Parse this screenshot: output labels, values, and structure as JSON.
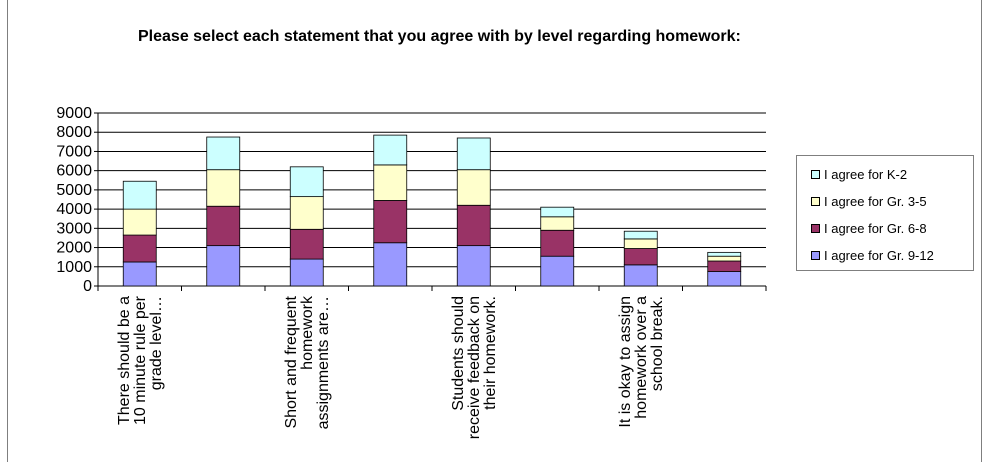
{
  "chart_data": {
    "type": "bar",
    "stacked": true,
    "title": "Please select each statement that you agree with by level regarding homework:",
    "categories": [
      "There should be a 10 minute rule per grade level…",
      "",
      "Short and frequent homework assignments are…",
      "",
      "Students should receive feedback on their homework.",
      "",
      "It is okay to assign homework over a school break.",
      ""
    ],
    "category_label_lines": [
      [
        "There should be a",
        "10 minute rule per",
        "grade level…"
      ],
      [],
      [
        "Short and frequent",
        "homework",
        "assignments are…"
      ],
      [],
      [
        "Students should",
        "receive feedback on",
        "their homework."
      ],
      [],
      [
        "It is okay to assign",
        "homework over a",
        "school break."
      ],
      []
    ],
    "series": [
      {
        "name": "I agree for Gr. 9-12",
        "color": "#9999ff",
        "values": [
          1250,
          2100,
          1400,
          2250,
          2100,
          1550,
          1100,
          750
        ]
      },
      {
        "name": "I agree for Gr. 6-8",
        "color": "#993366",
        "values": [
          1400,
          2050,
          1550,
          2200,
          2100,
          1350,
          850,
          550
        ]
      },
      {
        "name": "I agree for Gr. 3-5",
        "color": "#ffffcc",
        "values": [
          1350,
          1900,
          1700,
          1850,
          1850,
          700,
          500,
          250
        ]
      },
      {
        "name": "I agree for K-2",
        "color": "#ccffff",
        "values": [
          1450,
          1700,
          1550,
          1550,
          1650,
          500,
          400,
          200
        ]
      }
    ],
    "legend_order": [
      "I agree for K-2",
      "I agree for Gr. 3-5",
      "I agree for Gr. 6-8",
      "I agree for Gr. 9-12"
    ],
    "yticks": [
      0,
      1000,
      2000,
      3000,
      4000,
      5000,
      6000,
      7000,
      8000,
      9000
    ],
    "ylim": [
      0,
      9000
    ],
    "grid": true,
    "legend_position": "right"
  }
}
